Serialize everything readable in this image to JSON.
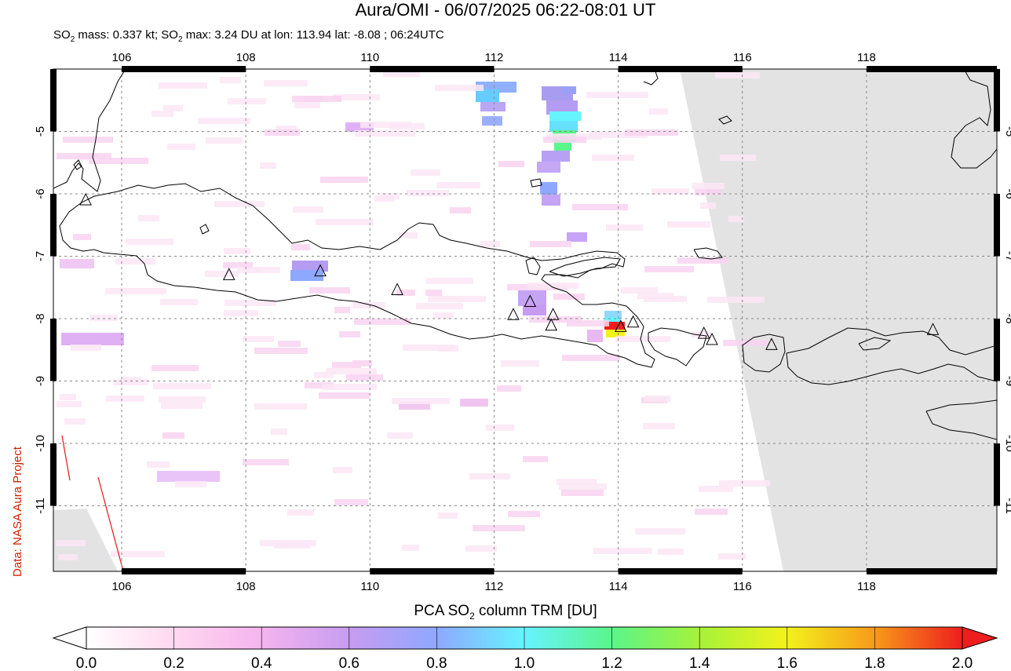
{
  "header": {
    "title": "Aura/OMI - 06/07/2025 06:22-08:01 UT",
    "subtitle_prefix": "SO",
    "subtitle_sub1": "2",
    "subtitle_mid": " mass: 0.337 kt; SO",
    "subtitle_sub2": "2",
    "subtitle_rest": " max: 3.24 DU at lon: 113.94 lat: -8.08 ; 06:24UTC"
  },
  "credit": "Data: NASA Aura Project",
  "map": {
    "lon_range": [
      104.9,
      120.1
    ],
    "lat_range": [
      -12.05,
      -4.0
    ],
    "x_ticks": [
      "106",
      "108",
      "110",
      "112",
      "114",
      "116",
      "118"
    ],
    "y_ticks": [
      "-5",
      "-6",
      "-7",
      "-8",
      "-9",
      "-10",
      "-11"
    ],
    "grid": true,
    "no_data_color": "#e3e3e3",
    "volcanoes": [
      {
        "lon": 105.42,
        "lat": -6.1
      },
      {
        "lon": 107.73,
        "lat": -7.3
      },
      {
        "lon": 109.2,
        "lat": -7.24
      },
      {
        "lon": 110.44,
        "lat": -7.54
      },
      {
        "lon": 112.31,
        "lat": -7.94
      },
      {
        "lon": 112.58,
        "lat": -7.73
      },
      {
        "lon": 112.95,
        "lat": -7.94
      },
      {
        "lon": 112.92,
        "lat": -8.11
      },
      {
        "lon": 114.04,
        "lat": -8.13
      },
      {
        "lon": 114.24,
        "lat": -8.06
      },
      {
        "lon": 115.38,
        "lat": -8.24
      },
      {
        "lon": 115.51,
        "lat": -8.34
      },
      {
        "lon": 116.47,
        "lat": -8.42
      },
      {
        "lon": 119.07,
        "lat": -8.18
      }
    ]
  },
  "colorbar": {
    "title_prefix": "PCA SO",
    "title_sub": "2",
    "title_rest": " column TRM [DU]",
    "ticks": [
      "0.0",
      "0.2",
      "0.4",
      "0.6",
      "0.8",
      "1.0",
      "1.2",
      "1.4",
      "1.6",
      "1.8",
      "2.0"
    ],
    "colors": [
      "#ffffff",
      "#ffd8f0",
      "#f5b4ee",
      "#c79cf0",
      "#8fa8ff",
      "#66f4ff",
      "#5bf58a",
      "#a6f23a",
      "#f2f21c",
      "#f79a1a",
      "#ee1e1e"
    ]
  }
}
